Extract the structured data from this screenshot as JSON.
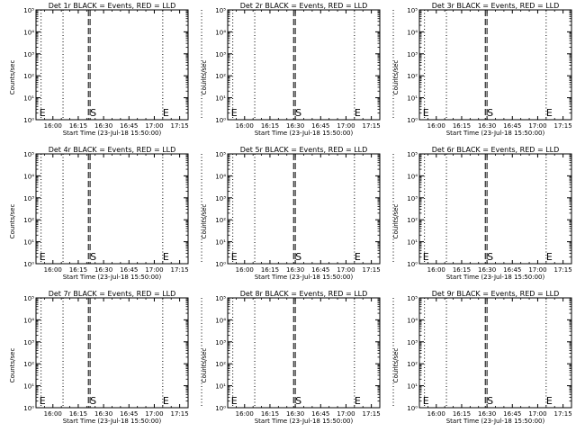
{
  "chart_data": {
    "type": "line",
    "xlabel": "Start Time (23-Jul-18 15:50:00)",
    "ylabel": "Counts/sec",
    "x_ticks": [
      "16:00",
      "16:15",
      "16:30",
      "16:45",
      "17:00",
      "17:15"
    ],
    "y_ticks": [
      "10⁰",
      "10¹",
      "10²",
      "10³",
      "10⁴",
      "10⁵"
    ],
    "ylim_log10": [
      0,
      5
    ],
    "grid": false,
    "legend": "none",
    "panels": [
      {
        "title": "Det 1r BLACK = Events, RED = LLD",
        "dotted_lines": [
          "15:53",
          "16:06",
          "17:05",
          "17:28"
        ],
        "dashed_lines": [
          "16:21",
          "16:22"
        ],
        "annotations": [
          {
            "label": "E",
            "x": "15:52"
          },
          {
            "label": "S",
            "x": "16:22"
          },
          {
            "label": "E",
            "x": "17:05"
          }
        ]
      },
      {
        "title": "Det 2r BLACK = Events, RED = LLD",
        "dotted_lines": [
          "15:53",
          "16:06",
          "17:05",
          "17:28"
        ],
        "dashed_lines": [
          "16:29",
          "16:30"
        ],
        "annotations": [
          {
            "label": "E",
            "x": "15:52"
          },
          {
            "label": "S",
            "x": "16:30"
          },
          {
            "label": "E",
            "x": "17:05"
          }
        ]
      },
      {
        "title": "Det 3r BLACK = Events, RED = LLD",
        "dotted_lines": [
          "15:53",
          "16:06",
          "17:05",
          "17:28"
        ],
        "dashed_lines": [
          "16:29",
          "16:30"
        ],
        "annotations": [
          {
            "label": "E",
            "x": "15:52"
          },
          {
            "label": "S",
            "x": "16:30"
          },
          {
            "label": "E",
            "x": "17:05"
          }
        ]
      },
      {
        "title": "Det 4r BLACK = Events, RED = LLD",
        "dotted_lines": [
          "15:53",
          "16:06",
          "17:05",
          "17:28"
        ],
        "dashed_lines": [
          "16:21",
          "16:22"
        ],
        "annotations": [
          {
            "label": "E",
            "x": "15:52"
          },
          {
            "label": "S",
            "x": "16:22"
          },
          {
            "label": "E",
            "x": "17:05"
          }
        ]
      },
      {
        "title": "Det 5r BLACK = Events, RED = LLD",
        "dotted_lines": [
          "15:53",
          "16:06",
          "17:05",
          "17:28"
        ],
        "dashed_lines": [
          "16:29",
          "16:30"
        ],
        "annotations": [
          {
            "label": "E",
            "x": "15:52"
          },
          {
            "label": "S",
            "x": "16:30"
          },
          {
            "label": "E",
            "x": "17:05"
          }
        ]
      },
      {
        "title": "Det 6r BLACK = Events, RED = LLD",
        "dotted_lines": [
          "15:53",
          "16:06",
          "17:05",
          "17:28"
        ],
        "dashed_lines": [
          "16:29",
          "16:30"
        ],
        "annotations": [
          {
            "label": "E",
            "x": "15:52"
          },
          {
            "label": "S",
            "x": "16:30"
          },
          {
            "label": "E",
            "x": "17:05"
          }
        ]
      },
      {
        "title": "Det 7r BLACK = Events, RED = LLD",
        "dotted_lines": [
          "15:53",
          "16:06",
          "17:05",
          "17:28"
        ],
        "dashed_lines": [
          "16:21",
          "16:22"
        ],
        "annotations": [
          {
            "label": "E",
            "x": "15:52"
          },
          {
            "label": "S",
            "x": "16:22"
          },
          {
            "label": "E",
            "x": "17:05"
          }
        ]
      },
      {
        "title": "Det 8r BLACK = Events, RED = LLD",
        "dotted_lines": [
          "15:53",
          "16:06",
          "17:05",
          "17:28"
        ],
        "dashed_lines": [
          "16:29",
          "16:30"
        ],
        "annotations": [
          {
            "label": "E",
            "x": "15:52"
          },
          {
            "label": "S",
            "x": "16:30"
          },
          {
            "label": "E",
            "x": "17:05"
          }
        ]
      },
      {
        "title": "Det 9r BLACK = Events, RED = LLD",
        "dotted_lines": [
          "15:53",
          "16:06",
          "17:05",
          "17:28"
        ],
        "dashed_lines": [
          "16:29",
          "16:30"
        ],
        "annotations": [
          {
            "label": "E",
            "x": "15:52"
          },
          {
            "label": "S",
            "x": "16:30"
          },
          {
            "label": "E",
            "x": "17:05"
          }
        ]
      }
    ]
  }
}
